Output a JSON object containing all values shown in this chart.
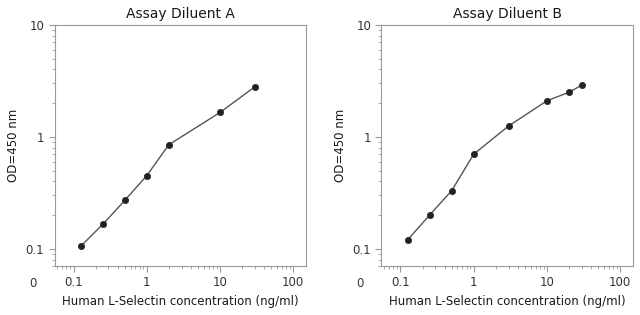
{
  "title_A": "Assay Diluent A",
  "title_B": "Assay Diluent B",
  "xlabel": "Human L-Selectin concentration (ng/ml)",
  "ylabel": "OD=450 nm",
  "xlim": [
    0.055,
    150
  ],
  "ylim": [
    0.07,
    10
  ],
  "x_A": [
    0.125,
    0.25,
    0.5,
    1.0,
    2.0,
    10.0,
    30.0
  ],
  "y_A": [
    0.105,
    0.165,
    0.27,
    0.45,
    0.85,
    1.65,
    2.8
  ],
  "x_B": [
    0.125,
    0.25,
    0.5,
    1.0,
    3.0,
    10.0,
    20.0,
    30.0
  ],
  "y_B": [
    0.12,
    0.2,
    0.33,
    0.7,
    1.25,
    2.1,
    2.5,
    2.9
  ],
  "line_color": "#555555",
  "marker": "o",
  "marker_size": 4.5,
  "marker_color": "#222222",
  "line_width": 1.0,
  "bg_color": "#ffffff",
  "spine_color": "#999999",
  "tick_color": "#333333",
  "label_fontsize": 8.5,
  "title_fontsize": 10,
  "tick_fontsize": 8.5
}
